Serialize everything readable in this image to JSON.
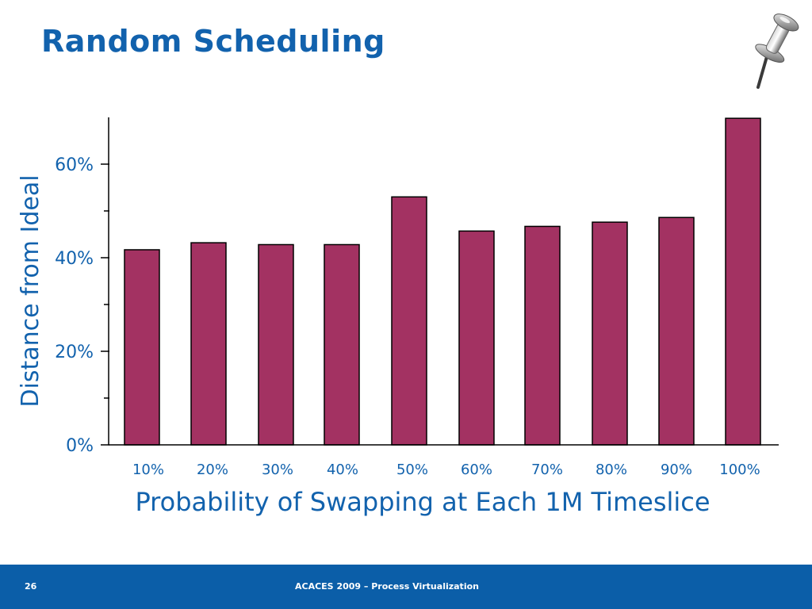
{
  "slide": {
    "title": "Random Scheduling",
    "page_number": "26",
    "footer_text": "ACACES 2009 – Process Virtualization"
  },
  "icons": {
    "decoration": "pushpin-icon"
  },
  "colors": {
    "title": "#1262ad",
    "bar_fill": "#a33262",
    "bar_stroke": "#000000",
    "footer_bg": "#0b5ea8"
  },
  "chart_data": {
    "type": "bar",
    "categories": [
      "10%",
      "20%",
      "30%",
      "40%",
      "50%",
      "60%",
      "70%",
      "80%",
      "90%",
      "100%"
    ],
    "values": [
      41.7,
      43.2,
      42.8,
      42.8,
      53.0,
      45.7,
      46.7,
      47.6,
      48.6,
      69.8
    ],
    "xlabel": "Probability of Swapping at Each 1M Timeslice",
    "ylabel": "Distance from Ideal",
    "ylim": [
      0,
      70
    ],
    "yticks": [
      0,
      20,
      40,
      60
    ],
    "ytick_labels": [
      "0%",
      "20%",
      "40%",
      "60%"
    ],
    "grid": false,
    "legend": "none"
  }
}
